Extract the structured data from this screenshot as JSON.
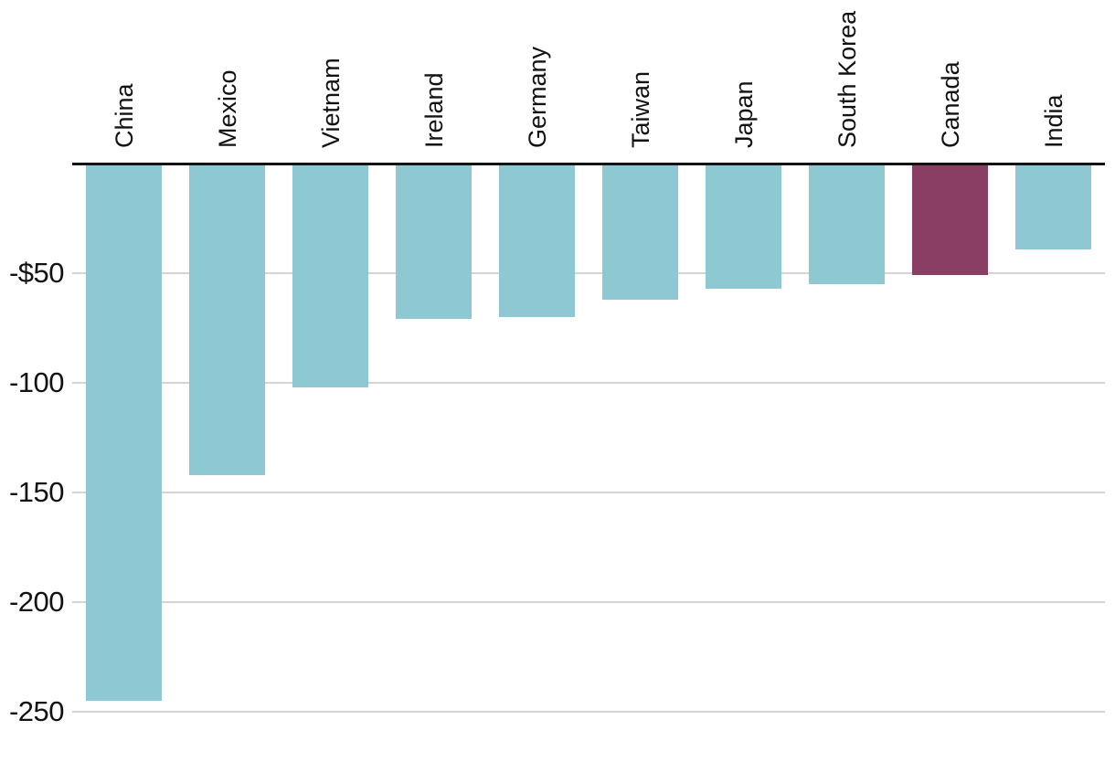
{
  "chart_data": {
    "type": "bar",
    "title": "",
    "xlabel": "",
    "ylabel": "",
    "categories": [
      "China",
      "Mexico",
      "Vietnam",
      "Ireland",
      "Germany",
      "Taiwan",
      "Japan",
      "South Korea",
      "Canada",
      "India"
    ],
    "values": [
      -245,
      -142,
      -102,
      -71,
      -70,
      -62,
      -57,
      -55,
      -51,
      -39
    ],
    "highlight_category": "Canada",
    "y_ticks": [
      {
        "value": -50,
        "label": "-$50"
      },
      {
        "value": -100,
        "label": "-100"
      },
      {
        "value": -150,
        "label": "-150"
      },
      {
        "value": -200,
        "label": "-200"
      },
      {
        "value": -250,
        "label": "-250"
      }
    ],
    "ylim": [
      -250,
      0
    ],
    "grid": true,
    "legend": false,
    "bar_label_rotation": -90,
    "colors": {
      "bar": "#8ec9d3",
      "highlight": "#8b3e63",
      "gridline": "#d4d4d4",
      "axis": "#121212",
      "text": "#121212"
    }
  }
}
